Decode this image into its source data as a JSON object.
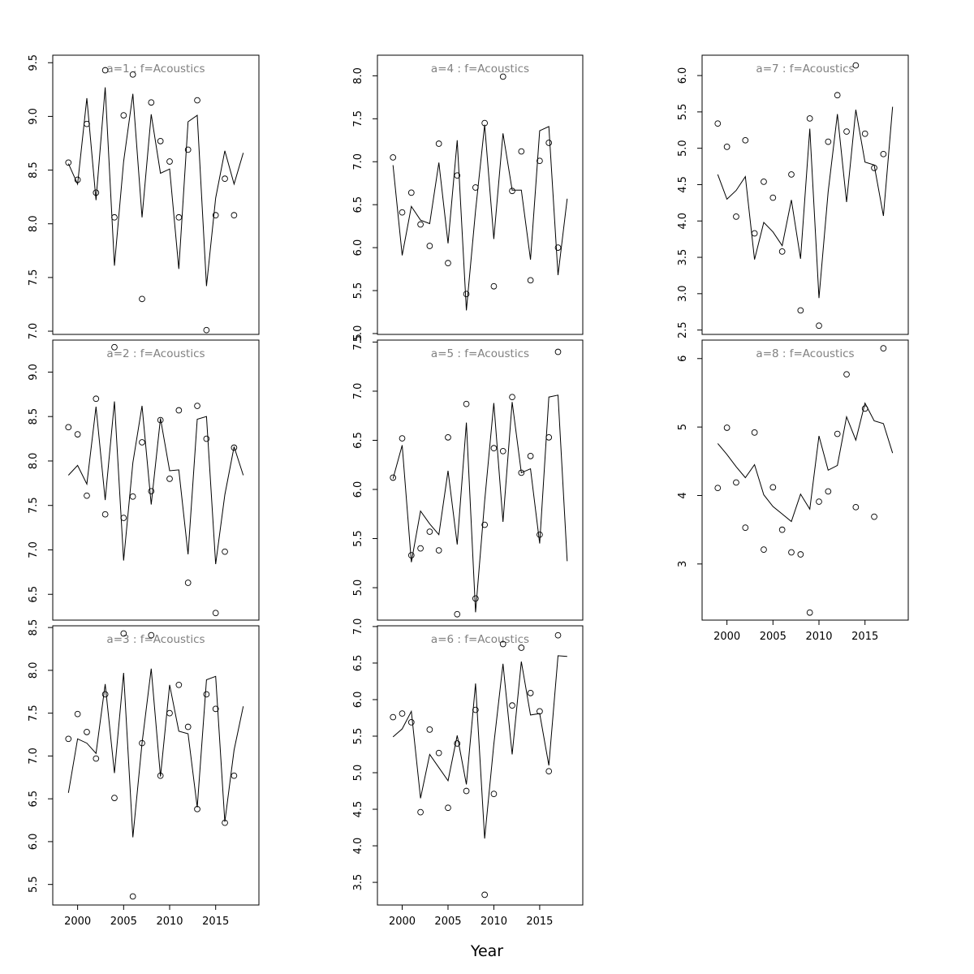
{
  "x_axis_label": "Year",
  "chart_data": [
    {
      "type": "line",
      "title": "a=1  :  f=Acoustics",
      "x": [
        1999,
        2000,
        2001,
        2002,
        2003,
        2004,
        2005,
        2006,
        2007,
        2008,
        2009,
        2010,
        2011,
        2012,
        2013,
        2014,
        2015,
        2016,
        2017,
        2018
      ],
      "series": [
        {
          "kind": "points",
          "values": [
            8.57,
            8.41,
            8.93,
            8.29,
            9.43,
            8.06,
            9.01,
            9.39,
            7.3,
            9.13,
            8.77,
            8.58,
            8.06,
            8.69,
            9.15,
            7.01,
            8.08,
            8.42,
            8.08,
            null
          ]
        },
        {
          "kind": "line",
          "values": [
            8.56,
            8.37,
            9.17,
            8.22,
            9.27,
            7.61,
            8.58,
            9.21,
            8.06,
            9.02,
            8.47,
            8.51,
            7.58,
            8.95,
            9.01,
            7.42,
            8.24,
            8.68,
            8.37,
            8.66
          ]
        }
      ],
      "yticks": [
        7.0,
        7.5,
        8.0,
        8.5,
        9.0,
        9.5
      ],
      "ylim": [
        6.97,
        9.57
      ],
      "xlim": [
        1997.3,
        2019.7
      ],
      "xticks": []
    },
    {
      "type": "line",
      "title": "a=2  :  f=Acoustics",
      "x": [
        1999,
        2000,
        2001,
        2002,
        2003,
        2004,
        2005,
        2006,
        2007,
        2008,
        2009,
        2010,
        2011,
        2012,
        2013,
        2014,
        2015,
        2016,
        2017,
        2018
      ],
      "series": [
        {
          "kind": "points",
          "values": [
            8.38,
            8.3,
            7.61,
            8.7,
            7.4,
            9.28,
            7.36,
            7.6,
            8.21,
            7.66,
            8.46,
            7.8,
            8.57,
            6.63,
            8.62,
            8.25,
            6.29,
            6.98,
            8.15,
            null
          ]
        },
        {
          "kind": "line",
          "values": [
            7.84,
            7.95,
            7.74,
            8.61,
            7.56,
            8.67,
            6.88,
            7.98,
            8.62,
            7.51,
            8.48,
            7.89,
            7.9,
            6.95,
            8.47,
            8.5,
            6.84,
            7.62,
            8.16,
            7.84
          ]
        }
      ],
      "yticks": [
        6.5,
        7.0,
        7.5,
        8.0,
        8.5,
        9.0
      ],
      "ylim": [
        6.21,
        9.36
      ],
      "xlim": [
        1997.3,
        2019.7
      ],
      "xticks": []
    },
    {
      "type": "line",
      "title": "a=3  :  f=Acoustics",
      "x": [
        1999,
        2000,
        2001,
        2002,
        2003,
        2004,
        2005,
        2006,
        2007,
        2008,
        2009,
        2010,
        2011,
        2012,
        2013,
        2014,
        2015,
        2016,
        2017,
        2018
      ],
      "series": [
        {
          "kind": "points",
          "values": [
            7.2,
            7.49,
            7.28,
            6.97,
            7.72,
            6.51,
            8.43,
            5.36,
            7.15,
            8.41,
            6.77,
            7.5,
            7.83,
            7.34,
            6.38,
            7.72,
            7.55,
            6.22,
            6.77,
            null
          ]
        },
        {
          "kind": "line",
          "values": [
            6.57,
            7.2,
            7.15,
            7.03,
            7.84,
            6.8,
            7.97,
            6.05,
            7.15,
            8.02,
            6.76,
            7.83,
            7.29,
            7.26,
            6.4,
            7.89,
            7.93,
            6.23,
            7.07,
            7.58
          ]
        }
      ],
      "yticks": [
        5.5,
        6.0,
        6.5,
        7.0,
        7.5,
        8.0,
        8.5
      ],
      "ylim": [
        5.26,
        8.52
      ],
      "xlim": [
        1997.3,
        2019.7
      ],
      "xticks": [
        2000,
        2005,
        2010,
        2015
      ]
    },
    {
      "type": "line",
      "title": "a=4  :  f=Acoustics",
      "x": [
        1999,
        2000,
        2001,
        2002,
        2003,
        2004,
        2005,
        2006,
        2007,
        2008,
        2009,
        2010,
        2011,
        2012,
        2013,
        2014,
        2015,
        2016,
        2017,
        2018
      ],
      "series": [
        {
          "kind": "points",
          "values": [
            7.05,
            6.41,
            6.64,
            6.27,
            6.02,
            7.21,
            5.82,
            6.84,
            5.46,
            6.7,
            7.45,
            5.55,
            7.99,
            6.66,
            7.12,
            5.62,
            7.01,
            7.22,
            6.0,
            null
          ]
        },
        {
          "kind": "line",
          "values": [
            6.96,
            5.91,
            6.48,
            6.32,
            6.28,
            6.99,
            6.05,
            7.25,
            5.27,
            6.43,
            7.43,
            6.1,
            7.33,
            6.67,
            6.67,
            5.86,
            7.36,
            7.41,
            5.68,
            6.57
          ]
        }
      ],
      "yticks": [
        5.0,
        5.5,
        6.0,
        6.5,
        7.0,
        7.5,
        8.0
      ],
      "ylim": [
        4.99,
        8.24
      ],
      "xlim": [
        1997.3,
        2019.7
      ],
      "xticks": []
    },
    {
      "type": "line",
      "title": "a=5  :  f=Acoustics",
      "x": [
        1999,
        2000,
        2001,
        2002,
        2003,
        2004,
        2005,
        2006,
        2007,
        2008,
        2009,
        2010,
        2011,
        2012,
        2013,
        2014,
        2015,
        2016,
        2017,
        2018
      ],
      "series": [
        {
          "kind": "points",
          "values": [
            6.12,
            6.52,
            5.33,
            5.4,
            5.57,
            5.38,
            6.53,
            4.73,
            6.87,
            4.89,
            5.64,
            6.42,
            6.39,
            6.94,
            6.17,
            6.34,
            5.54,
            6.53,
            7.4,
            null
          ]
        },
        {
          "kind": "line",
          "values": [
            6.11,
            6.45,
            5.26,
            5.78,
            5.65,
            5.54,
            6.19,
            5.44,
            6.68,
            4.75,
            5.88,
            6.88,
            5.67,
            6.89,
            6.17,
            6.21,
            5.45,
            6.94,
            6.96,
            5.27
          ]
        }
      ],
      "yticks": [
        5.0,
        5.5,
        6.0,
        6.5,
        7.0,
        7.5
      ],
      "ylim": [
        4.67,
        7.52
      ],
      "xlim": [
        1997.3,
        2019.7
      ],
      "xticks": []
    },
    {
      "type": "line",
      "title": "a=6  :  f=Acoustics",
      "x": [
        1999,
        2000,
        2001,
        2002,
        2003,
        2004,
        2005,
        2006,
        2007,
        2008,
        2009,
        2010,
        2011,
        2012,
        2013,
        2014,
        2015,
        2016,
        2017,
        2018
      ],
      "series": [
        {
          "kind": "points",
          "values": [
            5.76,
            5.81,
            5.69,
            4.46,
            5.59,
            5.27,
            4.52,
            5.4,
            4.75,
            5.86,
            3.33,
            4.71,
            6.76,
            5.92,
            6.71,
            6.09,
            5.84,
            5.02,
            6.88,
            null
          ]
        },
        {
          "kind": "line",
          "values": [
            5.49,
            5.6,
            5.84,
            4.65,
            5.25,
            5.07,
            4.89,
            5.51,
            4.84,
            6.22,
            4.1,
            5.39,
            6.49,
            5.25,
            6.52,
            5.79,
            5.81,
            5.1,
            6.6,
            6.59
          ]
        }
      ],
      "yticks": [
        3.5,
        4.0,
        4.5,
        5.0,
        5.5,
        6.0,
        6.5,
        7.0
      ],
      "ylim": [
        3.19,
        7.01
      ],
      "xlim": [
        1997.3,
        2019.7
      ],
      "xticks": [
        2000,
        2005,
        2010,
        2015
      ]
    },
    {
      "type": "line",
      "title": "a=7  :  f=Acoustics",
      "x": [
        1999,
        2000,
        2001,
        2002,
        2003,
        2004,
        2005,
        2006,
        2007,
        2008,
        2009,
        2010,
        2011,
        2012,
        2013,
        2014,
        2015,
        2016,
        2017,
        2018
      ],
      "series": [
        {
          "kind": "points",
          "values": [
            5.34,
            5.02,
            4.06,
            5.11,
            3.83,
            4.54,
            4.32,
            3.58,
            4.64,
            2.77,
            5.41,
            2.56,
            5.09,
            5.73,
            5.23,
            6.14,
            5.2,
            4.73,
            4.92,
            null
          ]
        },
        {
          "kind": "line",
          "values": [
            4.64,
            4.3,
            4.42,
            4.61,
            3.47,
            3.98,
            3.85,
            3.66,
            4.29,
            3.48,
            5.27,
            2.94,
            4.4,
            5.47,
            4.26,
            5.53,
            4.81,
            4.77,
            4.07,
            5.57
          ]
        }
      ],
      "yticks": [
        2.5,
        3.0,
        3.5,
        4.0,
        4.5,
        5.0,
        5.5,
        6.0
      ],
      "ylim": [
        2.44,
        6.28
      ],
      "xlim": [
        1997.3,
        2019.7
      ],
      "xticks": []
    },
    {
      "type": "line",
      "title": "a=8  :  f=Acoustics",
      "x": [
        1999,
        2000,
        2001,
        2002,
        2003,
        2004,
        2005,
        2006,
        2007,
        2008,
        2009,
        2010,
        2011,
        2012,
        2013,
        2014,
        2015,
        2016,
        2017,
        2018
      ],
      "series": [
        {
          "kind": "points",
          "values": [
            4.11,
            4.99,
            4.19,
            3.53,
            4.92,
            3.21,
            4.12,
            3.5,
            3.17,
            3.14,
            2.29,
            3.91,
            4.06,
            4.9,
            5.77,
            3.83,
            5.27,
            3.69,
            6.15,
            null
          ]
        },
        {
          "kind": "line",
          "values": [
            4.76,
            4.6,
            4.42,
            4.26,
            4.45,
            4.01,
            3.84,
            3.73,
            3.62,
            4.02,
            3.8,
            4.87,
            4.37,
            4.44,
            5.15,
            4.81,
            5.35,
            5.09,
            5.05,
            4.62
          ]
        }
      ],
      "yticks": [
        3,
        4,
        5,
        6
      ],
      "ylim": [
        2.18,
        6.27
      ],
      "xlim": [
        1997.3,
        2019.7
      ],
      "xticks": [
        2000,
        2005,
        2010,
        2015
      ]
    }
  ]
}
